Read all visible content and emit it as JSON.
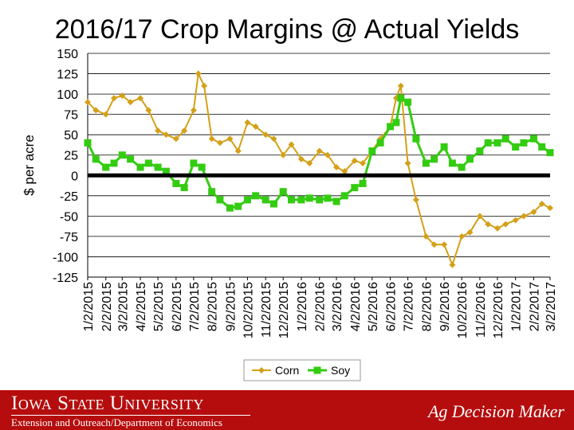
{
  "chart_data": {
    "type": "line",
    "title": "2016/17 Crop Margins @ Actual Yields",
    "ylabel": "$ per acre",
    "xlabel": "",
    "ylim": [
      -125,
      150
    ],
    "yticks": [
      150,
      125,
      100,
      75,
      50,
      25,
      0,
      -25,
      -50,
      -75,
      -100,
      -125
    ],
    "x_tick_labels": [
      "1/2/2015",
      "2/2/2015",
      "3/2/2015",
      "4/2/2015",
      "5/2/2015",
      "6/2/2015",
      "7/2/2015",
      "8/2/2015",
      "9/2/2015",
      "10/2/2015",
      "11/2/2015",
      "12/2/2015",
      "1/2/2016",
      "2/2/2016",
      "3/2/2016",
      "4/2/2016",
      "5/2/2016",
      "6/2/2016",
      "7/2/2016",
      "8/2/2016",
      "9/2/2016",
      "10/2/2016",
      "11/2/2016",
      "12/2/2016",
      "1/2/2017",
      "2/2/2017",
      "3/2/2017"
    ],
    "x_tick_labels_style": "rotated 90°",
    "grid": "horizontal major lines",
    "zero_line": "bold black",
    "legend_position": "bottom",
    "series": [
      {
        "name": "Corn",
        "color": "#d4a017",
        "marker": "diamond",
        "x": [
          "1/2/2015",
          "1/16/2015",
          "2/2/2015",
          "2/16/2015",
          "3/2/2015",
          "3/16/2015",
          "4/2/2015",
          "4/16/2015",
          "5/2/2015",
          "5/16/2015",
          "6/2/2015",
          "6/16/2015",
          "7/2/2015",
          "7/10/2015",
          "7/20/2015",
          "8/2/2015",
          "8/16/2015",
          "9/2/2015",
          "9/16/2015",
          "10/2/2015",
          "10/16/2015",
          "11/2/2015",
          "11/16/2015",
          "12/2/2015",
          "12/16/2015",
          "1/2/2016",
          "1/16/2016",
          "2/2/2016",
          "2/16/2016",
          "3/2/2016",
          "3/16/2016",
          "4/2/2016",
          "4/16/2016",
          "5/2/2016",
          "5/16/2016",
          "6/2/2016",
          "6/12/2016",
          "6/20/2016",
          "7/2/2016",
          "7/16/2016",
          "8/2/2016",
          "8/16/2016",
          "9/2/2016",
          "9/16/2016",
          "10/2/2016",
          "10/16/2016",
          "11/2/2016",
          "11/16/2016",
          "12/2/2016",
          "12/16/2016",
          "1/2/2017",
          "1/16/2017",
          "2/2/2017",
          "2/16/2017",
          "3/2/2017"
        ],
        "values": [
          90,
          80,
          75,
          95,
          98,
          90,
          95,
          80,
          55,
          50,
          45,
          55,
          80,
          125,
          110,
          45,
          40,
          45,
          30,
          65,
          60,
          50,
          45,
          25,
          38,
          20,
          15,
          30,
          25,
          10,
          5,
          18,
          15,
          30,
          45,
          60,
          95,
          110,
          15,
          -30,
          -75,
          -85,
          -85,
          -110,
          -75,
          -70,
          -50,
          -60,
          -65,
          -60,
          -55,
          -50,
          -45,
          -35,
          -40
        ]
      },
      {
        "name": "Soy",
        "color": "#33cc11",
        "marker": "square",
        "x": [
          "1/2/2015",
          "1/16/2015",
          "2/2/2015",
          "2/16/2015",
          "3/2/2015",
          "3/16/2015",
          "4/2/2015",
          "4/16/2015",
          "5/2/2015",
          "5/16/2015",
          "6/2/2015",
          "6/16/2015",
          "7/2/2015",
          "7/16/2015",
          "8/2/2015",
          "8/16/2015",
          "9/2/2015",
          "9/16/2015",
          "10/2/2015",
          "10/16/2015",
          "11/2/2015",
          "11/16/2015",
          "12/2/2015",
          "12/16/2015",
          "1/2/2016",
          "1/16/2016",
          "2/2/2016",
          "2/16/2016",
          "3/2/2016",
          "3/16/2016",
          "4/2/2016",
          "4/16/2016",
          "5/2/2016",
          "5/16/2016",
          "6/2/2016",
          "6/12/2016",
          "6/20/2016",
          "7/2/2016",
          "7/16/2016",
          "8/2/2016",
          "8/16/2016",
          "9/2/2016",
          "9/16/2016",
          "10/2/2016",
          "10/16/2016",
          "11/2/2016",
          "11/16/2016",
          "12/2/2016",
          "12/16/2016",
          "1/2/2017",
          "1/16/2017",
          "2/2/2017",
          "2/16/2017",
          "3/2/2017"
        ],
        "values": [
          40,
          20,
          10,
          15,
          25,
          20,
          10,
          15,
          10,
          5,
          -10,
          -15,
          15,
          10,
          -20,
          -30,
          -40,
          -38,
          -30,
          -25,
          -30,
          -35,
          -20,
          -30,
          -30,
          -28,
          -30,
          -28,
          -32,
          -25,
          -15,
          -10,
          30,
          40,
          60,
          65,
          95,
          90,
          45,
          15,
          20,
          35,
          15,
          10,
          20,
          30,
          40,
          40,
          45,
          35,
          40,
          45,
          35,
          28
        ]
      }
    ]
  },
  "footer": {
    "university": "Iowa State University",
    "department": "Extension and Outreach/Department of Economics",
    "brand": "Ag Decision Maker"
  }
}
